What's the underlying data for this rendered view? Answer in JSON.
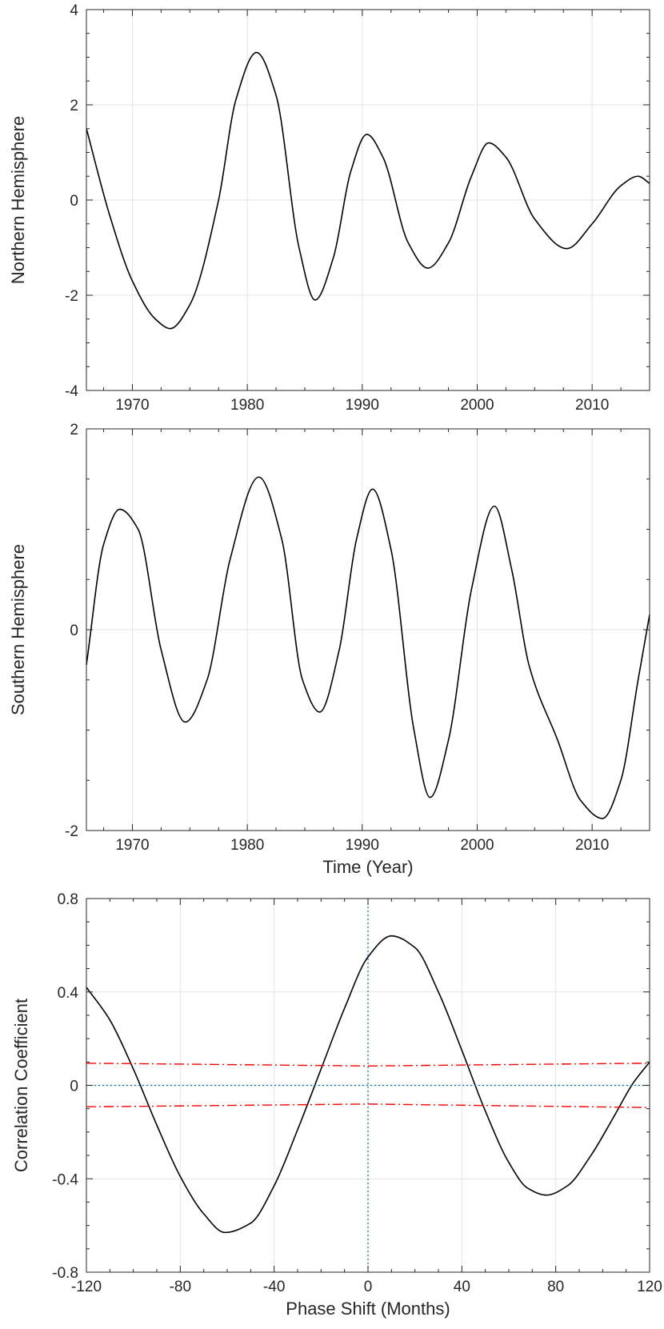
{
  "chart_data": [
    {
      "type": "line",
      "id": "northern",
      "title": "",
      "xlabel": "",
      "ylabel": "Northern Hemisphere",
      "xlim": [
        1966,
        2015
      ],
      "ylim": [
        -4,
        4
      ],
      "xticks": [
        1970,
        1980,
        1990,
        2000,
        2010
      ],
      "xtick_labels": [
        "1970",
        "1980",
        "1990",
        "2000",
        "2010"
      ],
      "yticks": [
        -4,
        -2,
        0,
        2,
        4
      ],
      "ytick_labels": [
        "-4",
        "-2",
        "0",
        "2",
        "4"
      ],
      "grid": true,
      "series": [
        {
          "name": "Northern Hemisphere",
          "color": "#000000",
          "x": [
            1966.0,
            1968.0,
            1970.0,
            1972.0,
            1973.3,
            1975.0,
            1977.5,
            1979.0,
            1980.8,
            1982.5,
            1984.5,
            1985.9,
            1987.5,
            1989.0,
            1990.4,
            1991.8,
            1994.0,
            1995.7,
            1997.5,
            1999.5,
            2001.0,
            2002.5,
            2005.0,
            2007.8,
            2010.0,
            2012.5,
            2014.0,
            2015.0
          ],
          "values": [
            1.5,
            -0.3,
            -1.7,
            -2.5,
            -2.7,
            -2.2,
            0.0,
            2.1,
            3.1,
            2.2,
            -1.0,
            -2.1,
            -1.2,
            0.6,
            1.38,
            0.9,
            -0.9,
            -1.43,
            -0.9,
            0.5,
            1.2,
            0.9,
            -0.4,
            -1.02,
            -0.5,
            0.3,
            0.5,
            0.35
          ]
        }
      ]
    },
    {
      "type": "line",
      "id": "southern",
      "title": "",
      "xlabel": "Time (Year)",
      "ylabel": "Southern Hemisphere",
      "xlim": [
        1966,
        2015
      ],
      "ylim": [
        -2,
        2
      ],
      "xticks": [
        1970,
        1980,
        1990,
        2000,
        2010
      ],
      "xtick_labels": [
        "1970",
        "1980",
        "1990",
        "2000",
        "2010"
      ],
      "yticks": [
        -2,
        0,
        2
      ],
      "ytick_labels": [
        "-2",
        "0",
        "2"
      ],
      "grid": true,
      "series": [
        {
          "name": "Southern Hemisphere",
          "color": "#000000",
          "x": [
            1966.0,
            1967.5,
            1968.9,
            1970.5,
            1972.5,
            1974.6,
            1976.5,
            1978.5,
            1981.0,
            1983.0,
            1984.8,
            1986.3,
            1988.0,
            1989.5,
            1990.9,
            1992.5,
            1994.5,
            1995.9,
            1997.5,
            1999.5,
            2001.5,
            2003.0,
            2004.5,
            2007.0,
            2009.0,
            2010.9,
            2012.5,
            2014.0,
            2015.0
          ],
          "values": [
            -0.35,
            0.85,
            1.2,
            1.0,
            -0.2,
            -0.92,
            -0.5,
            0.7,
            1.52,
            0.9,
            -0.5,
            -0.82,
            -0.2,
            0.9,
            1.4,
            0.8,
            -1.0,
            -1.67,
            -1.1,
            0.4,
            1.23,
            0.6,
            -0.35,
            -1.1,
            -1.7,
            -1.88,
            -1.5,
            -0.5,
            0.15
          ]
        }
      ]
    },
    {
      "type": "line",
      "id": "correlation",
      "title": "",
      "xlabel": "Phase Shift (Months)",
      "ylabel": "Correlation Coefficient",
      "xlim": [
        -120,
        120
      ],
      "ylim": [
        -0.8,
        0.8
      ],
      "xticks": [
        -120,
        -80,
        -40,
        0,
        40,
        80,
        120
      ],
      "xtick_labels": [
        "-120",
        "-80",
        "-40",
        "0",
        "40",
        "80",
        "120"
      ],
      "yticks": [
        -0.8,
        -0.4,
        0,
        0.4,
        0.8
      ],
      "ytick_labels": [
        "-0.8",
        "-0.4",
        "0",
        "0.4",
        "0.8"
      ],
      "grid": true,
      "series": [
        {
          "name": "Correlation Coefficient",
          "color": "#000000",
          "style": "solid",
          "x": [
            -120,
            -110,
            -100,
            -90,
            -80,
            -70,
            -61,
            -50,
            -40,
            -30,
            -20,
            -10,
            0,
            10,
            20,
            30,
            40,
            50,
            60,
            68,
            76,
            85,
            95,
            105,
            113,
            120
          ],
          "values": [
            0.42,
            0.28,
            0.07,
            -0.17,
            -0.39,
            -0.55,
            -0.63,
            -0.59,
            -0.43,
            -0.19,
            0.07,
            0.33,
            0.55,
            0.64,
            0.59,
            0.4,
            0.15,
            -0.11,
            -0.33,
            -0.44,
            -0.47,
            -0.43,
            -0.3,
            -0.13,
            0.01,
            0.1
          ]
        },
        {
          "name": "Upper significance level",
          "color": "#ff0000",
          "style": "dash-dot",
          "x": [
            -120,
            0,
            120
          ],
          "values": [
            0.095,
            0.083,
            0.095
          ]
        },
        {
          "name": "Lower significance level",
          "color": "#ff0000",
          "style": "dash-dot",
          "x": [
            -120,
            0,
            120
          ],
          "values": [
            -0.092,
            -0.08,
            -0.095
          ]
        },
        {
          "name": "Zero correlation reference",
          "color": "#0072bd",
          "style": "dotted",
          "x": [
            -120,
            120
          ],
          "values": [
            0,
            0
          ]
        },
        {
          "name": "Zero phase shift reference",
          "color": "#0072bd",
          "style": "dotted",
          "vertical_at_x": 0
        }
      ]
    }
  ]
}
